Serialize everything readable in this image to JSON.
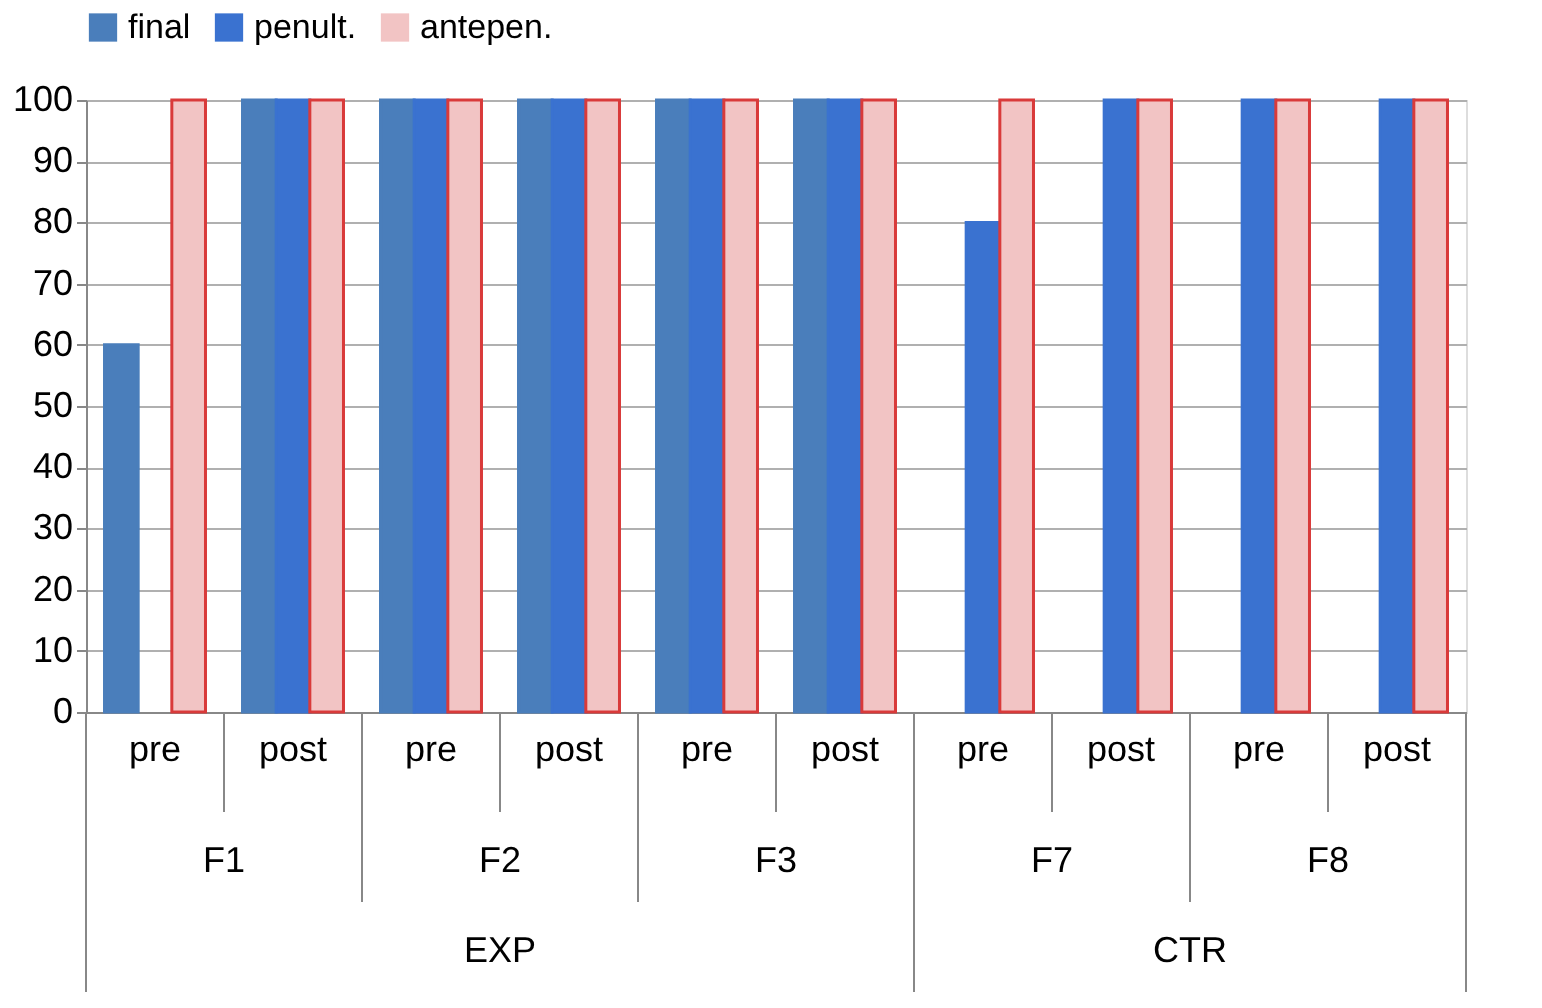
{
  "chart_data": {
    "type": "bar",
    "categories": [
      "pre",
      "post",
      "pre",
      "post",
      "pre",
      "post",
      "pre",
      "post",
      "pre",
      "post"
    ],
    "series": [
      {
        "name": "final",
        "color": "#4a7ebb",
        "values": [
          60,
          100,
          100,
          100,
          100,
          100,
          null,
          null,
          null,
          null
        ]
      },
      {
        "name": "penult.",
        "color": "#3a72d0",
        "values": [
          null,
          100,
          100,
          100,
          100,
          100,
          80,
          100,
          100,
          100
        ]
      },
      {
        "name": "antepen.",
        "color": "#f2c4c4",
        "values": [
          100,
          100,
          100,
          100,
          100,
          100,
          100,
          100,
          100,
          100
        ]
      }
    ],
    "annotations": [
      "F1",
      "F2",
      "F3",
      "F7",
      "F8",
      "EXP",
      "CTR"
    ],
    "ylim": [
      0,
      100
    ],
    "yticks": [
      0,
      10,
      20,
      30,
      40,
      50,
      60,
      70,
      80,
      90,
      100
    ],
    "grid": "y",
    "legend": "top"
  }
}
